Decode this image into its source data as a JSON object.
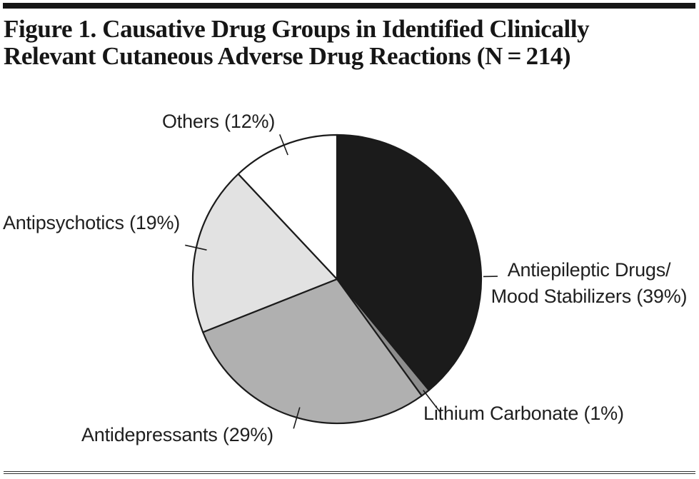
{
  "figure": {
    "title_line1": "Figure 1. Causative Drug Groups in Identified Clinically",
    "title_line2": "Relevant Cutaneous Adverse Drug Reactions (N = 214)"
  },
  "chart_data": {
    "type": "pie",
    "title": "Figure 1. Causative Drug Groups in Identified Clinically Relevant Cutaneous Adverse Drug Reactions (N = 214)",
    "n_total": 214,
    "start_angle_deg": 0,
    "direction": "clockwise",
    "outline_color": "#1b1b1b",
    "tick_color": "#1b1b1b",
    "slices": [
      {
        "name": "Antiepileptic Drugs/Mood Stabilizers",
        "value_pct": 39,
        "color": "#1b1b1b",
        "tick": "dash",
        "label_lines": [
          "Antiepileptic Drugs/",
          "Mood Stabilizers (39%)"
        ]
      },
      {
        "name": "Lithium Carbonate",
        "value_pct": 1,
        "color": "#8d8d8d",
        "tick": "leader",
        "label_lines": [
          "Lithium Carbonate (1%)"
        ]
      },
      {
        "name": "Antidepressants",
        "value_pct": 29,
        "color": "#b0b0b0",
        "tick": "radial",
        "label_lines": [
          "Antidepressants (29%)"
        ]
      },
      {
        "name": "Antipsychotics",
        "value_pct": 19,
        "color": "#e2e2e2",
        "tick": "radial",
        "label_lines": [
          "Antipsychotics (19%)"
        ]
      },
      {
        "name": "Others",
        "value_pct": 12,
        "color": "#ffffff",
        "tick": "radial",
        "label_lines": [
          "Others (12%)"
        ]
      }
    ]
  }
}
